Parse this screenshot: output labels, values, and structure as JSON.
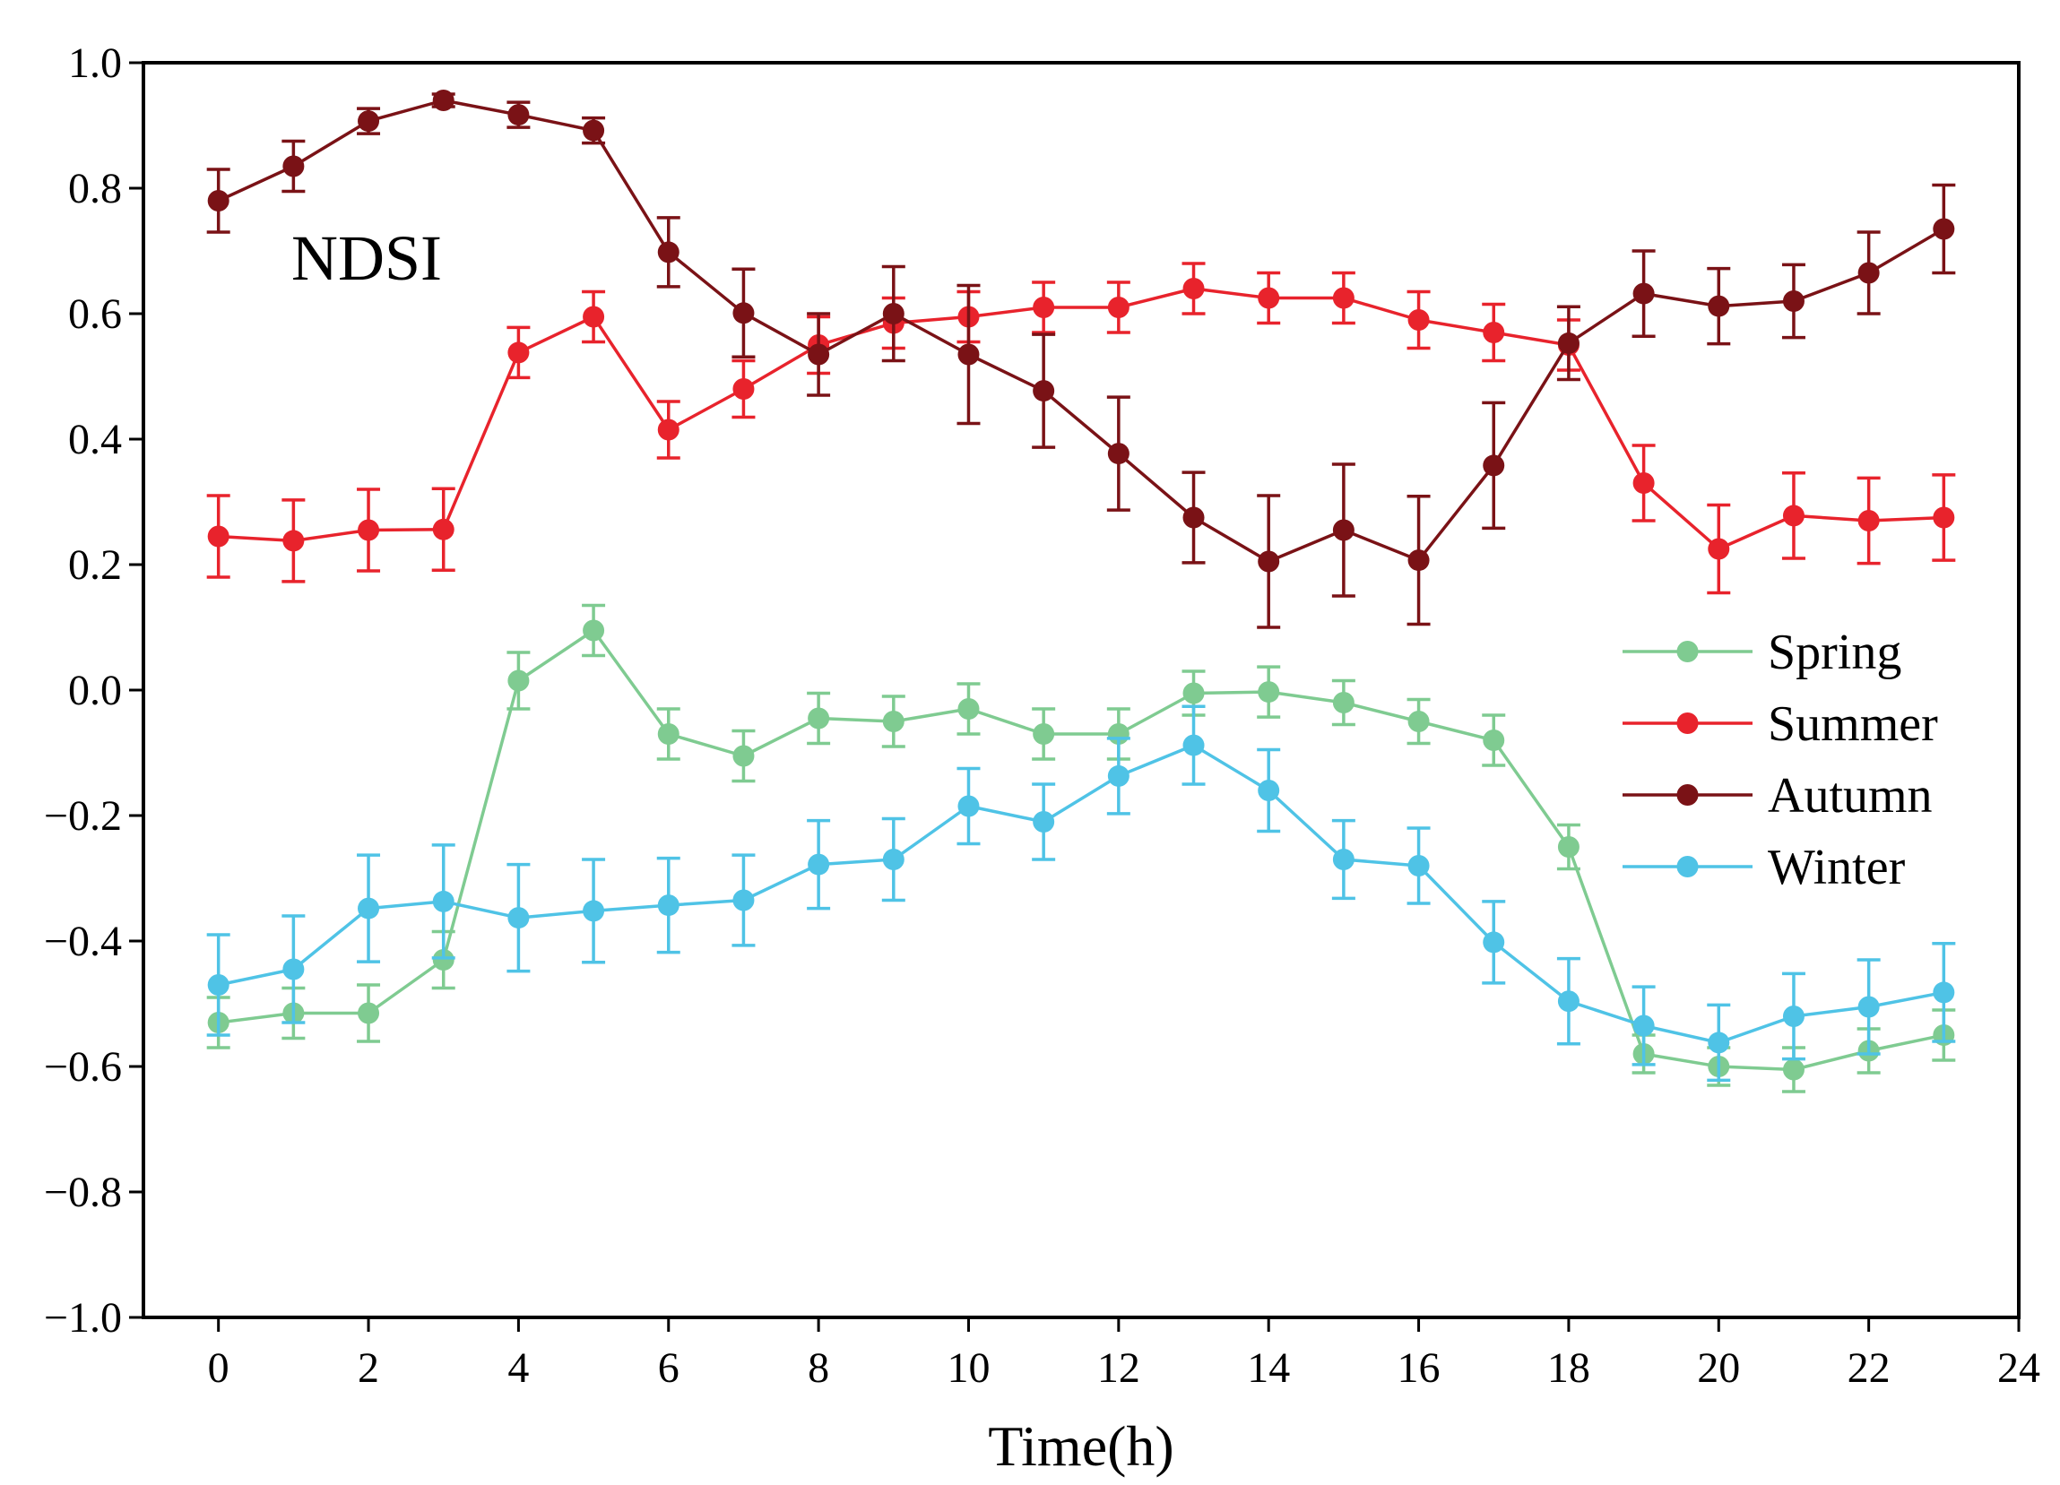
{
  "chart_data": {
    "type": "line",
    "title": "",
    "annotation": "NDSI",
    "xlabel": "Time(h)",
    "ylabel": "",
    "xlim": [
      -1,
      24
    ],
    "ylim": [
      -1.0,
      1.0
    ],
    "x_ticks": [
      0,
      2,
      4,
      6,
      8,
      10,
      12,
      14,
      16,
      18,
      20,
      22,
      24
    ],
    "x_tick_labels": [
      "0",
      "2",
      "4",
      "6",
      "8",
      "10",
      "12",
      "14",
      "16",
      "18",
      "20",
      "22",
      "24"
    ],
    "y_ticks": [
      -1.0,
      -0.8,
      -0.6,
      -0.4,
      -0.2,
      0.0,
      0.2,
      0.4,
      0.6,
      0.8,
      1.0
    ],
    "y_tick_labels": [
      "−1.0",
      "−0.8",
      "−0.6",
      "−0.4",
      "−0.2",
      "0.0",
      "0.2",
      "0.4",
      "0.6",
      "0.8",
      "1.0"
    ],
    "legend_position": "right",
    "x": [
      0,
      1,
      2,
      3,
      4,
      5,
      6,
      7,
      8,
      9,
      10,
      11,
      12,
      13,
      14,
      15,
      16,
      17,
      18,
      19,
      20,
      21,
      22,
      23
    ],
    "series": [
      {
        "name": "Spring",
        "color": "#7FCB91",
        "values": [
          -0.53,
          -0.515,
          -0.515,
          -0.43,
          0.015,
          0.095,
          -0.07,
          -0.105,
          -0.045,
          -0.05,
          -0.03,
          -0.07,
          -0.07,
          -0.005,
          -0.003,
          -0.02,
          -0.05,
          -0.08,
          -0.25,
          -0.58,
          -0.6,
          -0.605,
          -0.575,
          -0.55
        ],
        "errors": [
          0.04,
          0.04,
          0.045,
          0.045,
          0.045,
          0.04,
          0.04,
          0.04,
          0.04,
          0.04,
          0.04,
          0.04,
          0.04,
          0.035,
          0.04,
          0.035,
          0.035,
          0.04,
          0.035,
          0.03,
          0.03,
          0.035,
          0.035,
          0.04
        ]
      },
      {
        "name": "Summer",
        "color": "#E8232C",
        "values": [
          0.245,
          0.238,
          0.255,
          0.256,
          0.538,
          0.595,
          0.415,
          0.48,
          0.55,
          0.585,
          0.595,
          0.61,
          0.61,
          0.64,
          0.625,
          0.625,
          0.59,
          0.57,
          0.55,
          0.33,
          0.225,
          0.278,
          0.27,
          0.275
        ],
        "errors": [
          0.065,
          0.065,
          0.065,
          0.065,
          0.04,
          0.04,
          0.045,
          0.045,
          0.045,
          0.04,
          0.04,
          0.04,
          0.04,
          0.04,
          0.04,
          0.04,
          0.045,
          0.045,
          0.04,
          0.06,
          0.07,
          0.068,
          0.068,
          0.068
        ]
      },
      {
        "name": "Autumn",
        "color": "#7A1216",
        "values": [
          0.78,
          0.835,
          0.907,
          0.94,
          0.917,
          0.892,
          0.698,
          0.601,
          0.535,
          0.6,
          0.535,
          0.477,
          0.377,
          0.275,
          0.205,
          0.255,
          0.207,
          0.358,
          0.553,
          0.632,
          0.612,
          0.62,
          0.665,
          0.735
        ],
        "errors": [
          0.05,
          0.04,
          0.02,
          0.01,
          0.02,
          0.02,
          0.055,
          0.07,
          0.065,
          0.075,
          0.11,
          0.09,
          0.09,
          0.072,
          0.105,
          0.105,
          0.102,
          0.1,
          0.058,
          0.068,
          0.06,
          0.058,
          0.065,
          0.07
        ]
      },
      {
        "name": "Winter",
        "color": "#4FC3E6",
        "values": [
          -0.47,
          -0.445,
          -0.348,
          -0.337,
          -0.363,
          -0.352,
          -0.343,
          -0.335,
          -0.278,
          -0.27,
          -0.185,
          -0.21,
          -0.137,
          -0.088,
          -0.16,
          -0.27,
          -0.28,
          -0.402,
          -0.496,
          -0.535,
          -0.562,
          -0.52,
          -0.505,
          -0.482
        ],
        "errors": [
          0.08,
          0.085,
          0.085,
          0.09,
          0.085,
          0.082,
          0.075,
          0.072,
          0.07,
          0.065,
          0.06,
          0.06,
          0.06,
          0.062,
          0.065,
          0.062,
          0.06,
          0.065,
          0.068,
          0.062,
          0.06,
          0.068,
          0.075,
          0.078
        ]
      }
    ]
  }
}
